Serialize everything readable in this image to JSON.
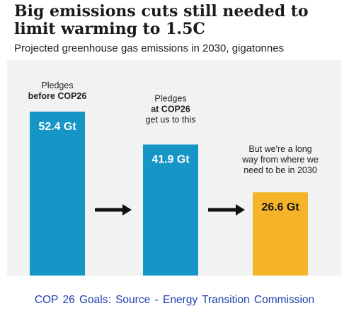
{
  "header": {
    "title": "Big emissions cuts still needed to limit warming to 1.5C",
    "subtitle": "Projected greenhouse gas emissions in 2030, gigatonnes"
  },
  "footer": {
    "caption": "COP 26 Goals: Source - Energy Transition Commission"
  },
  "colors": {
    "primary_bar": "#1596c6",
    "highlight_bar": "#f5b428",
    "panel_background": "#f2f2f2",
    "arrow": "#111111",
    "caption": "#1f3fb0"
  },
  "chart_data": {
    "type": "bar",
    "categories": [
      "Pledges before COP26",
      "Pledges at COP26",
      "Where we need to be in 2030"
    ],
    "values": [
      52.4,
      41.9,
      26.6
    ],
    "unit": "Gt",
    "data_labels": [
      "52.4 Gt",
      "41.9 Gt",
      "26.6 Gt"
    ],
    "bar_colors": [
      "#1596c6",
      "#1596c6",
      "#f5b428"
    ],
    "annotations": [
      {
        "lines": [
          {
            "text": "Pledges",
            "bold": false
          },
          {
            "text": "before COP26",
            "bold": true
          }
        ]
      },
      {
        "lines": [
          {
            "text": "Pledges",
            "bold": false
          },
          {
            "text": "at COP26",
            "bold": true
          },
          {
            "text": "get us to this",
            "bold": false
          }
        ]
      },
      {
        "lines": [
          {
            "text": "But we're a long",
            "bold": false
          },
          {
            "text": "way from where we",
            "bold": false
          },
          {
            "text": "need to be in 2030",
            "bold": false
          }
        ]
      }
    ],
    "arrows": [
      "arrow-1-to-2",
      "arrow-2-to-3"
    ],
    "title": "Big emissions cuts still needed to limit warming to 1.5C",
    "subtitle": "Projected greenhouse gas emissions in 2030, gigatonnes",
    "xlabel": "",
    "ylabel": "",
    "grid": false,
    "legend": "none"
  }
}
